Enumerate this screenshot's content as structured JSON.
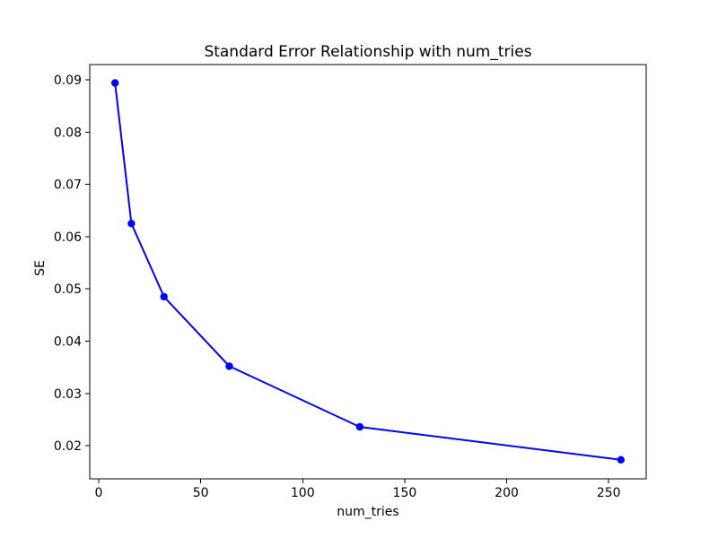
{
  "chart_data": {
    "type": "line",
    "title": "Standard Error Relationship with num_tries",
    "xlabel": "num_tries",
    "ylabel": "SE",
    "x": [
      8,
      16,
      32,
      64,
      128,
      256
    ],
    "y": [
      0.0894,
      0.0625,
      0.0485,
      0.0352,
      0.0236,
      0.0173
    ],
    "xticks": [
      0,
      50,
      100,
      150,
      200,
      250
    ],
    "yticks": [
      0.02,
      0.03,
      0.04,
      0.05,
      0.06,
      0.07,
      0.08,
      0.09
    ],
    "xlim": [
      -4.4,
      268.4
    ],
    "ylim": [
      0.01366,
      0.09292
    ],
    "line_color": "#0000ff",
    "marker": "o",
    "grid": false,
    "legend_position": "none",
    "background_color": "#ffffff",
    "spine_color": "#000000"
  }
}
